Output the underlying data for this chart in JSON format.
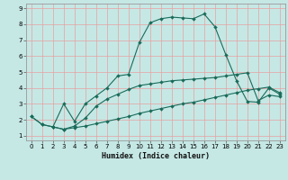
{
  "xlabel": "Humidex (Indice chaleur)",
  "bg_color": "#c5e8e5",
  "grid_color": "#e8a0a0",
  "line_color": "#1a6b5a",
  "xlim": [
    -0.5,
    23.5
  ],
  "ylim": [
    0.7,
    9.3
  ],
  "xticks": [
    0,
    1,
    2,
    3,
    4,
    5,
    6,
    7,
    8,
    9,
    10,
    11,
    12,
    13,
    14,
    15,
    16,
    17,
    18,
    19,
    20,
    21,
    22,
    23
  ],
  "yticks": [
    1,
    2,
    3,
    4,
    5,
    6,
    7,
    8,
    9
  ],
  "line1_x": [
    0,
    1,
    2,
    3,
    4,
    5,
    6,
    7,
    8,
    9,
    10,
    11,
    12,
    13,
    14,
    15,
    16,
    17,
    18,
    19,
    20,
    21,
    22,
    23
  ],
  "line1_y": [
    2.2,
    1.7,
    1.55,
    1.4,
    1.5,
    1.6,
    1.75,
    1.9,
    2.05,
    2.2,
    2.4,
    2.55,
    2.7,
    2.85,
    3.0,
    3.1,
    3.25,
    3.4,
    3.55,
    3.7,
    3.85,
    3.95,
    4.05,
    3.7
  ],
  "line2_x": [
    0,
    1,
    2,
    3,
    4,
    5,
    6,
    7,
    8,
    9,
    10,
    11,
    12,
    13,
    14,
    15,
    16,
    17,
    18,
    19,
    20,
    21,
    22,
    23
  ],
  "line2_y": [
    2.2,
    1.7,
    1.55,
    1.4,
    1.6,
    2.1,
    2.85,
    3.3,
    3.6,
    3.9,
    4.15,
    4.25,
    4.35,
    4.45,
    4.5,
    4.55,
    4.6,
    4.65,
    4.75,
    4.85,
    4.95,
    3.2,
    3.55,
    3.45
  ],
  "line3_x": [
    2,
    3,
    4,
    5,
    6,
    7,
    8,
    9,
    10,
    11,
    12,
    13,
    14,
    15,
    16,
    17,
    18,
    19,
    20,
    21,
    22,
    23
  ],
  "line3_y": [
    1.55,
    3.0,
    1.9,
    3.0,
    3.5,
    4.0,
    4.75,
    4.85,
    6.85,
    8.1,
    8.35,
    8.45,
    8.4,
    8.35,
    8.65,
    7.85,
    6.1,
    4.45,
    3.15,
    3.1,
    4.0,
    3.6
  ],
  "markersize": 2.0,
  "linewidth": 0.8,
  "tick_fontsize": 5.0,
  "xlabel_fontsize": 6.0
}
